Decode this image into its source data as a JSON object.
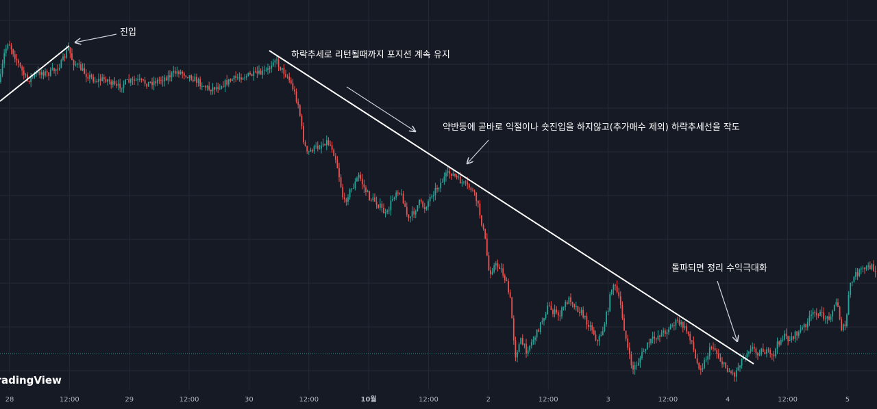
{
  "chart_data": {
    "type": "candlestick",
    "x_axis": {
      "tick_labels": [
        "28",
        "12:00",
        "29",
        "12:00",
        "30",
        "12:00",
        "10월",
        "12:00",
        "2",
        "12:00",
        "3",
        "12:00",
        "4",
        "12:00",
        "5"
      ],
      "bold_labels": [
        "10월"
      ]
    },
    "y_axis": {
      "tick_labels": []
    },
    "grid": true,
    "watermark": "TradingView",
    "annotations": [
      {
        "id": "entry",
        "text": "진입"
      },
      {
        "id": "hold",
        "text": "하락추세로 리턴될때까지 포지션 계속 유지"
      },
      {
        "id": "rebound",
        "text": "약반등에 곧바로 익절이나 숏진입을 하지않고(추가매수 제외) 하락추세선을 작도"
      },
      {
        "id": "breakout",
        "text": "돌파되면 정리 수익극대화"
      }
    ],
    "trendlines": [
      {
        "name": "entry-uptrend-line",
        "kind": "uptrend"
      },
      {
        "name": "downtrend-line",
        "kind": "downtrend"
      }
    ],
    "price_path": [
      [
        0,
        120
      ],
      [
        6,
        80
      ],
      [
        12,
        60
      ],
      [
        20,
        78
      ],
      [
        30,
        100
      ],
      [
        40,
        118
      ],
      [
        50,
        110
      ],
      [
        60,
        105
      ],
      [
        70,
        108
      ],
      [
        80,
        102
      ],
      [
        90,
        92
      ],
      [
        100,
        70
      ],
      [
        106,
        90
      ],
      [
        115,
        98
      ],
      [
        125,
        108
      ],
      [
        140,
        118
      ],
      [
        155,
        115
      ],
      [
        170,
        128
      ],
      [
        185,
        120
      ],
      [
        200,
        118
      ],
      [
        215,
        122
      ],
      [
        230,
        118
      ],
      [
        245,
        112
      ],
      [
        260,
        104
      ],
      [
        275,
        110
      ],
      [
        290,
        120
      ],
      [
        305,
        130
      ],
      [
        320,
        126
      ],
      [
        335,
        118
      ],
      [
        350,
        112
      ],
      [
        365,
        110
      ],
      [
        380,
        108
      ],
      [
        392,
        102
      ],
      [
        400,
        84
      ],
      [
        410,
        100
      ],
      [
        420,
        112
      ],
      [
        428,
        130
      ],
      [
        436,
        155
      ],
      [
        442,
        200
      ],
      [
        448,
        225
      ],
      [
        456,
        218
      ],
      [
        466,
        214
      ],
      [
        476,
        206
      ],
      [
        484,
        214
      ],
      [
        490,
        232
      ],
      [
        496,
        262
      ],
      [
        502,
        298
      ],
      [
        508,
        284
      ],
      [
        516,
        272
      ],
      [
        524,
        256
      ],
      [
        532,
        276
      ],
      [
        540,
        290
      ],
      [
        548,
        294
      ],
      [
        556,
        304
      ],
      [
        564,
        316
      ],
      [
        572,
        292
      ],
      [
        580,
        276
      ],
      [
        588,
        290
      ],
      [
        596,
        322
      ],
      [
        604,
        310
      ],
      [
        612,
        296
      ],
      [
        620,
        304
      ],
      [
        630,
        284
      ],
      [
        640,
        272
      ],
      [
        650,
        258
      ],
      [
        658,
        252
      ],
      [
        668,
        262
      ],
      [
        678,
        270
      ],
      [
        688,
        276
      ],
      [
        696,
        294
      ],
      [
        702,
        320
      ],
      [
        708,
        350
      ],
      [
        714,
        400
      ],
      [
        722,
        388
      ],
      [
        730,
        390
      ],
      [
        738,
        410
      ],
      [
        745,
        440
      ],
      [
        752,
        520
      ],
      [
        760,
        498
      ],
      [
        768,
        512
      ],
      [
        776,
        500
      ],
      [
        784,
        486
      ],
      [
        792,
        466
      ],
      [
        800,
        448
      ],
      [
        808,
        456
      ],
      [
        816,
        462
      ],
      [
        824,
        446
      ],
      [
        832,
        436
      ],
      [
        840,
        448
      ],
      [
        848,
        456
      ],
      [
        856,
        470
      ],
      [
        864,
        480
      ],
      [
        872,
        500
      ],
      [
        880,
        482
      ],
      [
        888,
        448
      ],
      [
        894,
        412
      ],
      [
        900,
        426
      ],
      [
        906,
        448
      ],
      [
        912,
        486
      ],
      [
        918,
        520
      ],
      [
        924,
        540
      ],
      [
        932,
        528
      ],
      [
        940,
        512
      ],
      [
        948,
        500
      ],
      [
        956,
        494
      ],
      [
        964,
        488
      ],
      [
        972,
        484
      ],
      [
        980,
        476
      ],
      [
        988,
        470
      ],
      [
        996,
        476
      ],
      [
        1004,
        486
      ],
      [
        1010,
        500
      ],
      [
        1016,
        530
      ],
      [
        1024,
        538
      ],
      [
        1032,
        520
      ],
      [
        1040,
        504
      ],
      [
        1048,
        520
      ],
      [
        1056,
        534
      ],
      [
        1064,
        542
      ],
      [
        1072,
        548
      ],
      [
        1080,
        530
      ],
      [
        1088,
        518
      ],
      [
        1096,
        506
      ],
      [
        1104,
        516
      ],
      [
        1112,
        512
      ],
      [
        1120,
        516
      ],
      [
        1128,
        522
      ],
      [
        1136,
        500
      ],
      [
        1144,
        492
      ],
      [
        1152,
        496
      ],
      [
        1160,
        490
      ],
      [
        1168,
        484
      ],
      [
        1176,
        474
      ],
      [
        1184,
        462
      ],
      [
        1192,
        456
      ],
      [
        1200,
        462
      ],
      [
        1208,
        466
      ],
      [
        1216,
        452
      ],
      [
        1222,
        440
      ],
      [
        1228,
        480
      ],
      [
        1234,
        478
      ],
      [
        1240,
        420
      ],
      [
        1248,
        402
      ],
      [
        1256,
        396
      ],
      [
        1264,
        392
      ],
      [
        1272,
        390
      ],
      [
        1280,
        396
      ]
    ]
  }
}
